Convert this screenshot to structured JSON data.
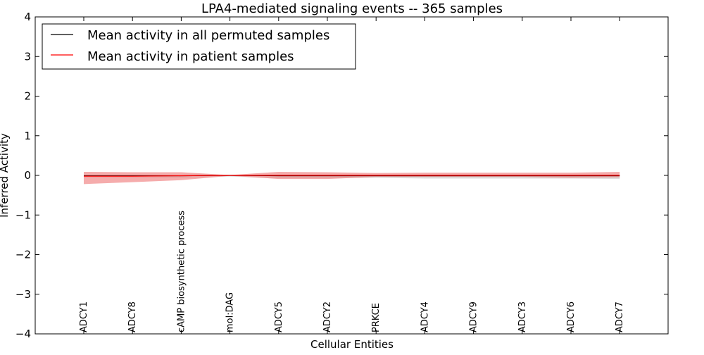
{
  "chart_data": {
    "type": "line",
    "title": "LPA4-mediated signaling events -- 365 samples",
    "xlabel": "Cellular Entities",
    "ylabel": "Inferred Activity",
    "ylim": [
      -4,
      4
    ],
    "yticks": [
      -4,
      -3,
      -2,
      -1,
      0,
      1,
      2,
      3,
      4
    ],
    "ytick_labels": [
      "−4",
      "−3",
      "−2",
      "−1",
      "0",
      "1",
      "2",
      "3",
      "4"
    ],
    "categories": [
      "ADCY1",
      "ADCY8",
      "cAMP biosynthetic process",
      "mol:DAG",
      "ADCY5",
      "ADCY2",
      "PRKCE",
      "ADCY4",
      "ADCY9",
      "ADCY3",
      "ADCY6",
      "ADCY7"
    ],
    "legend": {
      "position": "top-left",
      "entries": [
        {
          "label": "Mean activity in all permuted samples",
          "color": "#000000"
        },
        {
          "label": "Mean activity in patient samples",
          "color": "#ff0000"
        }
      ]
    },
    "series": [
      {
        "name": "Mean activity in all permuted samples",
        "color": "#000000",
        "values": [
          -0.01,
          -0.01,
          -0.01,
          0.0,
          -0.01,
          -0.01,
          -0.01,
          -0.01,
          -0.01,
          -0.01,
          -0.01,
          -0.01
        ],
        "band_upper": [
          0.02,
          0.02,
          0.02,
          0.01,
          0.02,
          0.02,
          0.02,
          0.02,
          0.02,
          0.02,
          0.02,
          0.02
        ],
        "band_lower": [
          -0.06,
          -0.06,
          -0.06,
          -0.03,
          -0.07,
          -0.07,
          -0.06,
          -0.08,
          -0.08,
          -0.08,
          -0.08,
          -0.09
        ],
        "band_color": "#c8c8c8"
      },
      {
        "name": "Mean activity in patient samples",
        "color": "#ff0000",
        "values": [
          -0.02,
          -0.02,
          -0.01,
          0.0,
          0.0,
          0.0,
          0.0,
          0.0,
          0.0,
          0.0,
          0.0,
          0.0
        ],
        "band_upper": [
          0.09,
          0.08,
          0.08,
          0.01,
          0.09,
          0.08,
          0.06,
          0.07,
          0.07,
          0.07,
          0.07,
          0.09
        ],
        "band_lower": [
          -0.22,
          -0.17,
          -0.12,
          -0.01,
          -0.09,
          -0.09,
          -0.04,
          -0.04,
          -0.04,
          -0.04,
          -0.06,
          -0.05
        ],
        "band_color": "#f08080"
      }
    ]
  }
}
